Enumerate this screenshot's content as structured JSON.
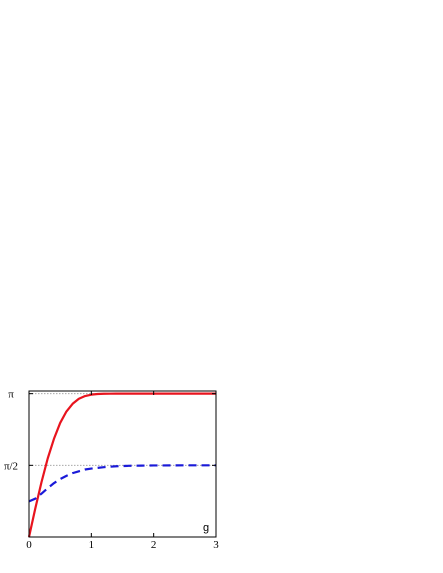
{
  "chart_data": {
    "type": "line",
    "xlabel": "g",
    "ylabel": "",
    "xlim": [
      0,
      3
    ],
    "ylim": [
      0,
      3.2
    ],
    "x_ticks": [
      0,
      1,
      2,
      3
    ],
    "x_tick_labels": [
      "0",
      "1",
      "2",
      "3"
    ],
    "y_ticks": [
      1.5708,
      3.1416
    ],
    "y_tick_labels": [
      "π/2",
      "π"
    ],
    "reference_lines": [
      {
        "y": 1.5708,
        "style": "dotted",
        "color": "#9a9a9a"
      },
      {
        "y": 3.1416,
        "style": "dotted",
        "color": "#9a9a9a"
      }
    ],
    "grid": false,
    "legend": "none",
    "series": [
      {
        "color": "#e8141e",
        "dash": "solid",
        "x": [
          0,
          0.1,
          0.2,
          0.3,
          0.4,
          0.5,
          0.6,
          0.7,
          0.8,
          0.9,
          1.0,
          1.1,
          1.2,
          1.3,
          1.4,
          1.5,
          1.6,
          1.8,
          2.0,
          2.5,
          3.0
        ],
        "y": [
          0.0,
          0.62,
          1.2,
          1.72,
          2.15,
          2.5,
          2.75,
          2.92,
          3.03,
          3.09,
          3.12,
          3.135,
          3.14,
          3.141,
          3.1416,
          3.1416,
          3.1416,
          3.1416,
          3.1416,
          3.1416,
          3.1416
        ]
      },
      {
        "color": "#1a1ad8",
        "dash": "dashed",
        "x": [
          0,
          0.1,
          0.2,
          0.3,
          0.4,
          0.5,
          0.6,
          0.7,
          0.8,
          0.9,
          1.0,
          1.2,
          1.4,
          1.6,
          1.8,
          2.0,
          2.5,
          3.0
        ],
        "y": [
          0.78,
          0.84,
          0.95,
          1.07,
          1.18,
          1.27,
          1.34,
          1.4,
          1.44,
          1.48,
          1.5,
          1.53,
          1.55,
          1.56,
          1.565,
          1.568,
          1.5708,
          1.5708
        ]
      }
    ]
  }
}
